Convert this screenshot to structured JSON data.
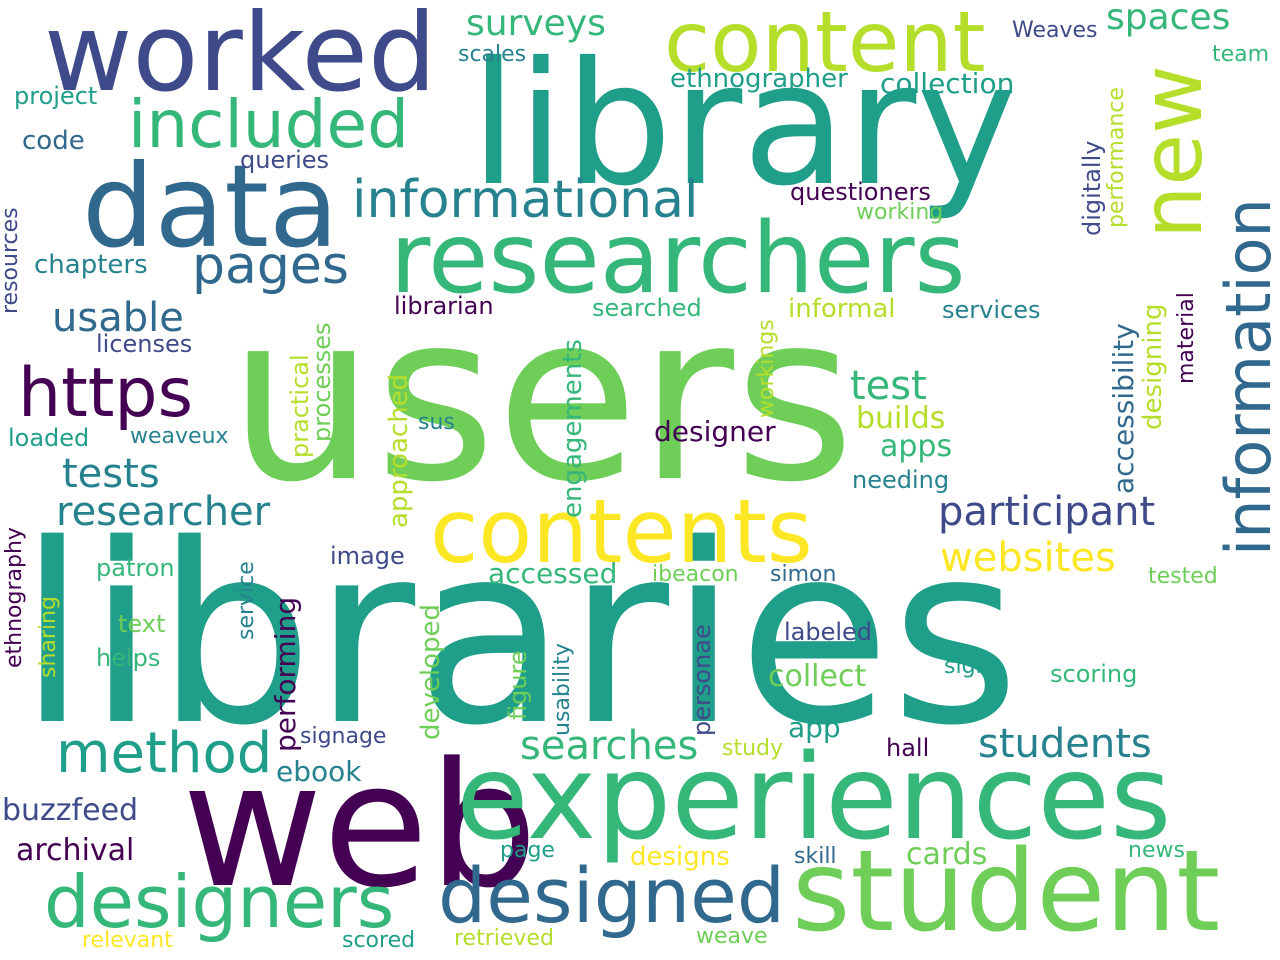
{
  "palette": {
    "dark_purple": "#440154",
    "indigo": "#3e4a89",
    "blue": "#31688e",
    "teal_blue": "#26828e",
    "teal": "#1f9e89",
    "green": "#35b779",
    "light_green": "#6ece58",
    "lime": "#b5de2b",
    "yellow": "#fde725"
  },
  "words": [
    {
      "text": "users"
    },
    {
      "text": "libraries"
    },
    {
      "text": "library"
    },
    {
      "text": "web"
    },
    {
      "text": "experiences"
    },
    {
      "text": "student"
    },
    {
      "text": "researchers"
    },
    {
      "text": "data"
    },
    {
      "text": "worked"
    },
    {
      "text": "content"
    },
    {
      "text": "contents"
    },
    {
      "text": "designers"
    },
    {
      "text": "designed"
    },
    {
      "text": "new"
    },
    {
      "text": "information"
    },
    {
      "text": "https"
    },
    {
      "text": "included"
    },
    {
      "text": "informational"
    },
    {
      "text": "pages"
    },
    {
      "text": "method"
    },
    {
      "text": "searches"
    },
    {
      "text": "students"
    },
    {
      "text": "participant"
    },
    {
      "text": "researcher"
    },
    {
      "text": "websites"
    },
    {
      "text": "tests"
    },
    {
      "text": "usable"
    },
    {
      "text": "test"
    },
    {
      "text": "surveys"
    },
    {
      "text": "spaces"
    },
    {
      "text": "collection"
    },
    {
      "text": "ethnographer"
    },
    {
      "text": "builds"
    },
    {
      "text": "apps"
    },
    {
      "text": "designer"
    },
    {
      "text": "accessed"
    },
    {
      "text": "collect"
    },
    {
      "text": "cards"
    },
    {
      "text": "archival"
    },
    {
      "text": "buzzfeed"
    },
    {
      "text": "ebook"
    },
    {
      "text": "chapters"
    },
    {
      "text": "code"
    },
    {
      "text": "project"
    },
    {
      "text": "queries"
    },
    {
      "text": "scales"
    },
    {
      "text": "questioners"
    },
    {
      "text": "working"
    },
    {
      "text": "librarian"
    },
    {
      "text": "searched"
    },
    {
      "text": "informal"
    },
    {
      "text": "services"
    },
    {
      "text": "licenses"
    },
    {
      "text": "loaded"
    },
    {
      "text": "weaveux"
    },
    {
      "text": "sus"
    },
    {
      "text": "needing"
    },
    {
      "text": "image"
    },
    {
      "text": "patron"
    },
    {
      "text": "text"
    },
    {
      "text": "helps"
    },
    {
      "text": "ibeacon"
    },
    {
      "text": "simon"
    },
    {
      "text": "labeled"
    },
    {
      "text": "tested"
    },
    {
      "text": "sign"
    },
    {
      "text": "scoring"
    },
    {
      "text": "app"
    },
    {
      "text": "hall"
    },
    {
      "text": "study"
    },
    {
      "text": "signage"
    },
    {
      "text": "page"
    },
    {
      "text": "designs"
    },
    {
      "text": "skill"
    },
    {
      "text": "news"
    },
    {
      "text": "relevant"
    },
    {
      "text": "scored"
    },
    {
      "text": "retrieved"
    },
    {
      "text": "weave"
    },
    {
      "text": "Weaves"
    },
    {
      "text": "team"
    },
    {
      "text": "digitally"
    },
    {
      "text": "performance"
    },
    {
      "text": "accessibility"
    },
    {
      "text": "designing"
    },
    {
      "text": "material"
    },
    {
      "text": "resources"
    },
    {
      "text": "ethnography"
    },
    {
      "text": "sharing"
    },
    {
      "text": "service"
    },
    {
      "text": "performing"
    },
    {
      "text": "practical"
    },
    {
      "text": "processes"
    },
    {
      "text": "approached"
    },
    {
      "text": "engagements"
    },
    {
      "text": "workings"
    },
    {
      "text": "developed"
    },
    {
      "text": "figure"
    },
    {
      "text": "usability"
    },
    {
      "text": "personae"
    }
  ]
}
